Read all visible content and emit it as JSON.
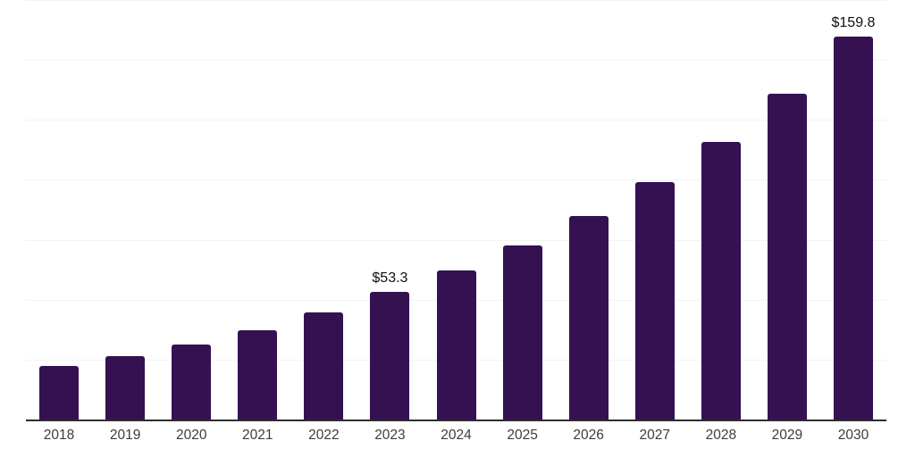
{
  "chart_data": {
    "type": "bar",
    "categories": [
      "2018",
      "2019",
      "2020",
      "2021",
      "2022",
      "2023",
      "2024",
      "2025",
      "2026",
      "2027",
      "2028",
      "2029",
      "2030"
    ],
    "values": [
      22.5,
      26.6,
      31.4,
      37.4,
      44.8,
      53.3,
      62.3,
      72.6,
      85.0,
      98.9,
      115.8,
      136.0,
      159.8
    ],
    "data_labels": [
      null,
      null,
      null,
      null,
      null,
      "$53.3",
      null,
      null,
      null,
      null,
      null,
      null,
      "$159.8"
    ],
    "title": "",
    "xlabel": "",
    "ylabel": "",
    "ylim": [
      0,
      175
    ],
    "gridline_step": 25,
    "gridline_values": [
      25,
      50,
      75,
      100,
      125,
      150,
      175
    ],
    "grid": true,
    "legend": false,
    "colors": {
      "bar": "#351152",
      "gridline": "#f3f3f3",
      "axis_line": "#2e2e2e",
      "tick_label": "#3c3c3c",
      "data_label": "#0f0f0f",
      "background": "#ffffff"
    }
  }
}
